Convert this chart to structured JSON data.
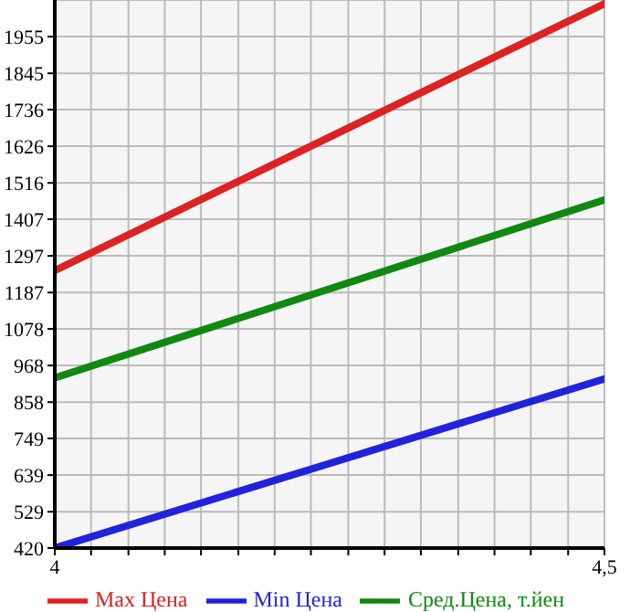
{
  "chart_data": {
    "type": "line",
    "x": [
      4,
      4.5
    ],
    "series": [
      {
        "name": "Max Цена",
        "color": "#dd2222",
        "values": [
          1253,
          2054
        ]
      },
      {
        "name": "Min Цена",
        "color": "#2222dd",
        "values": [
          420,
          928
        ]
      },
      {
        "name": "Сред.Цена, т.йен",
        "color": "#118811",
        "values": [
          931,
          1465
        ]
      }
    ],
    "xlim": [
      4,
      4.5
    ],
    "xticks": [
      {
        "value": 4,
        "label": "4"
      },
      {
        "value": 4.033,
        "label": null
      },
      {
        "value": 4.067,
        "label": null
      },
      {
        "value": 4.1,
        "label": null
      },
      {
        "value": 4.133,
        "label": null
      },
      {
        "value": 4.167,
        "label": null
      },
      {
        "value": 4.2,
        "label": null
      },
      {
        "value": 4.233,
        "label": null
      },
      {
        "value": 4.267,
        "label": null
      },
      {
        "value": 4.3,
        "label": null
      },
      {
        "value": 4.333,
        "label": null
      },
      {
        "value": 4.367,
        "label": null
      },
      {
        "value": 4.4,
        "label": null
      },
      {
        "value": 4.433,
        "label": null
      },
      {
        "value": 4.467,
        "label": null
      },
      {
        "value": 4.5,
        "label": "4,5"
      }
    ],
    "ylim": [
      420,
      2065
    ],
    "yticks": [
      420,
      529,
      639,
      749,
      858,
      968,
      1078,
      1187,
      1297,
      1407,
      1516,
      1626,
      1736,
      1845,
      1955
    ],
    "grid": true,
    "legend": "bottom",
    "marker": "none",
    "line_style": "solid"
  }
}
